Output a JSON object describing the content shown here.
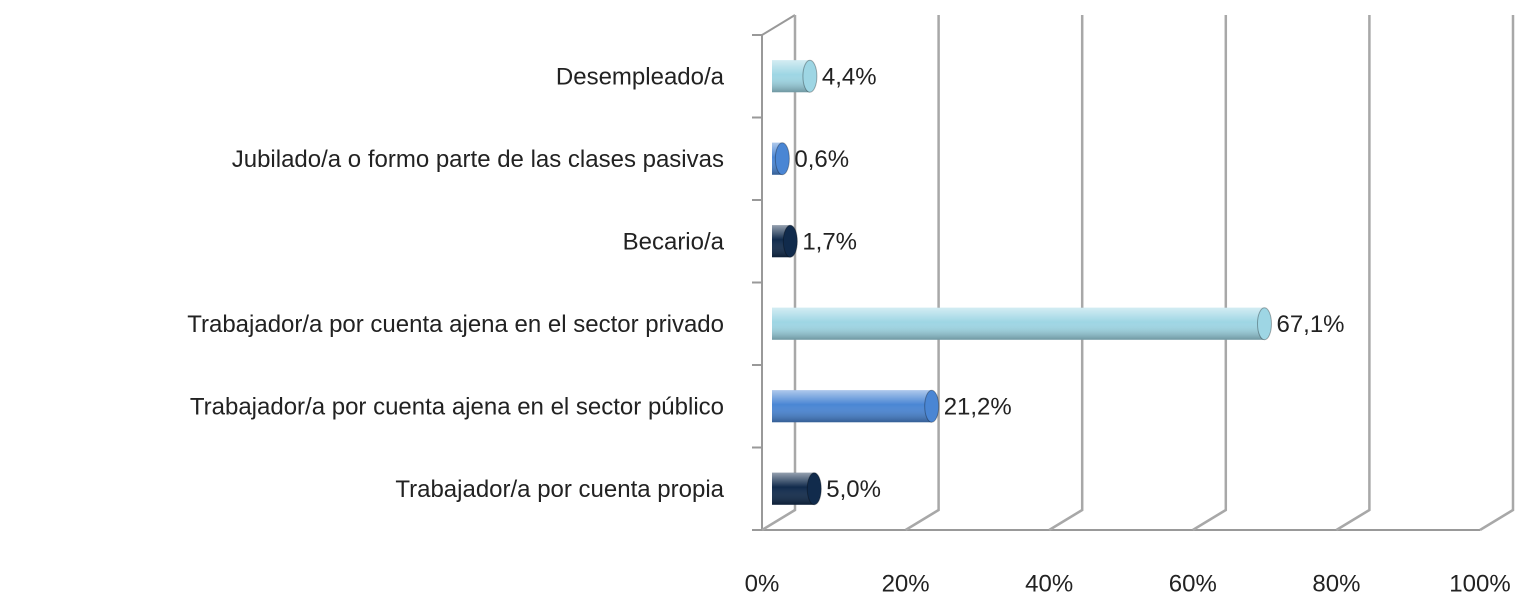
{
  "chart_data": {
    "type": "bar3d_horizontal",
    "categories": [
      "Desempleado/a",
      "Jubilado/a o formo parte de las clases pasivas",
      "Becario/a",
      "Trabajador/a por cuenta ajena en el sector privado",
      "Trabajador/a por cuenta ajena en el sector público",
      "Trabajador/a por cuenta propia"
    ],
    "values": [
      4.4,
      0.6,
      1.7,
      67.1,
      21.2,
      5.0
    ],
    "value_labels": [
      "4,4%",
      "0,6%",
      "1,7%",
      "67,1%",
      "21,2%",
      "5,0%"
    ],
    "colors": [
      "#9ed6e4",
      "#4a86d4",
      "#112b4c",
      "#9ed6e4",
      "#4a86d4",
      "#112b4c"
    ],
    "xlim": [
      0,
      100
    ],
    "xticks": [
      {
        "value": 0,
        "label": "0%"
      },
      {
        "value": 20,
        "label": "20%"
      },
      {
        "value": 40,
        "label": "40%"
      },
      {
        "value": 60,
        "label": "60%"
      },
      {
        "value": 80,
        "label": "80%"
      },
      {
        "value": 100,
        "label": "100%"
      }
    ],
    "grid": true
  }
}
